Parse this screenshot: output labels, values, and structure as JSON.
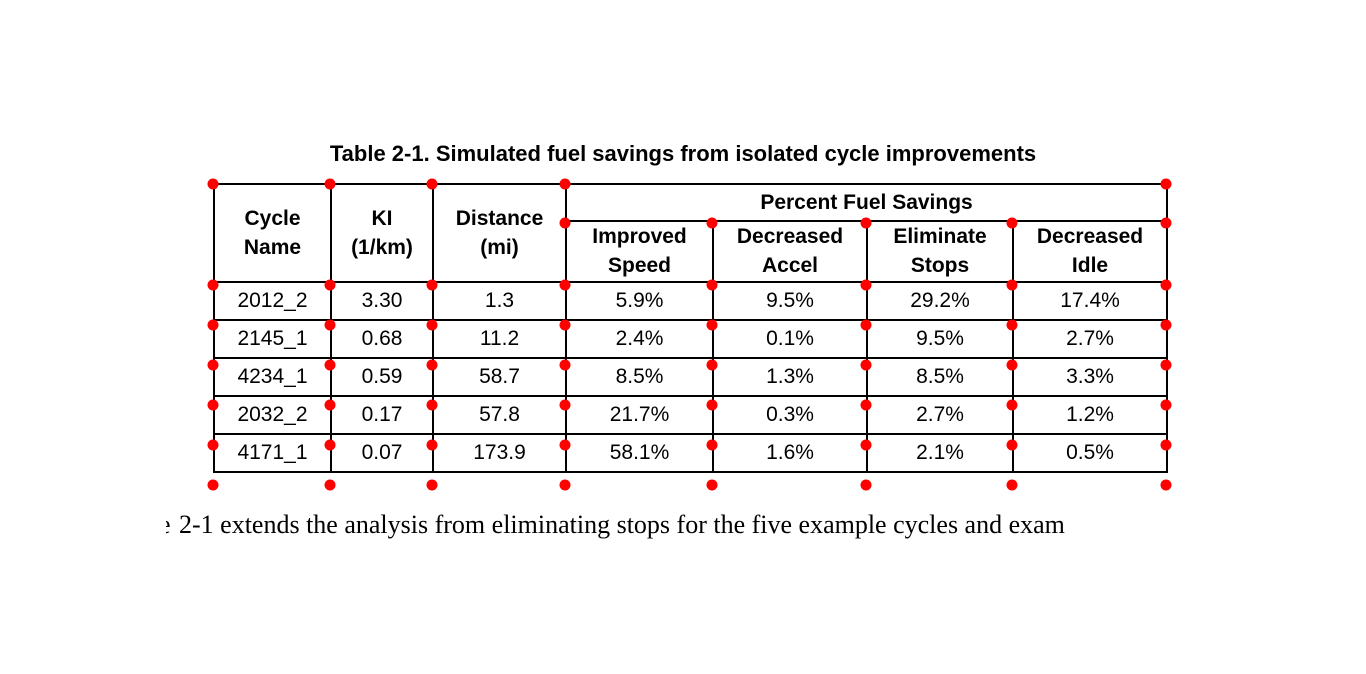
{
  "caption": "Table 2-1. Simulated fuel savings from isolated cycle improvements",
  "table": {
    "group_header": "Percent Fuel Savings",
    "columns": [
      "Cycle\nName",
      "KI\n(1/km)",
      "Distance\n(mi)",
      "Improved\nSpeed",
      "Decreased\nAccel",
      "Eliminate\nStops",
      "Decreased\nIdle"
    ],
    "rows": [
      [
        "2012_2",
        "3.30",
        "1.3",
        "5.9%",
        "9.5%",
        "29.2%",
        "17.4%"
      ],
      [
        "2145_1",
        "0.68",
        "11.2",
        "2.4%",
        "0.1%",
        "9.5%",
        "2.7%"
      ],
      [
        "4234_1",
        "0.59",
        "58.7",
        "8.5%",
        "1.3%",
        "8.5%",
        "3.3%"
      ],
      [
        "2032_2",
        "0.17",
        "57.8",
        "21.7%",
        "0.3%",
        "2.7%",
        "1.2%"
      ],
      [
        "4171_1",
        "0.07",
        "173.9",
        "58.1%",
        "1.6%",
        "2.1%",
        "0.5%"
      ]
    ]
  },
  "body_text": {
    "clipped_prefix": "e",
    "sentence": "2-1 extends the analysis from eliminating stops for the five example cycles and exam"
  },
  "annotation": {
    "dot_color": "#ff0000"
  }
}
